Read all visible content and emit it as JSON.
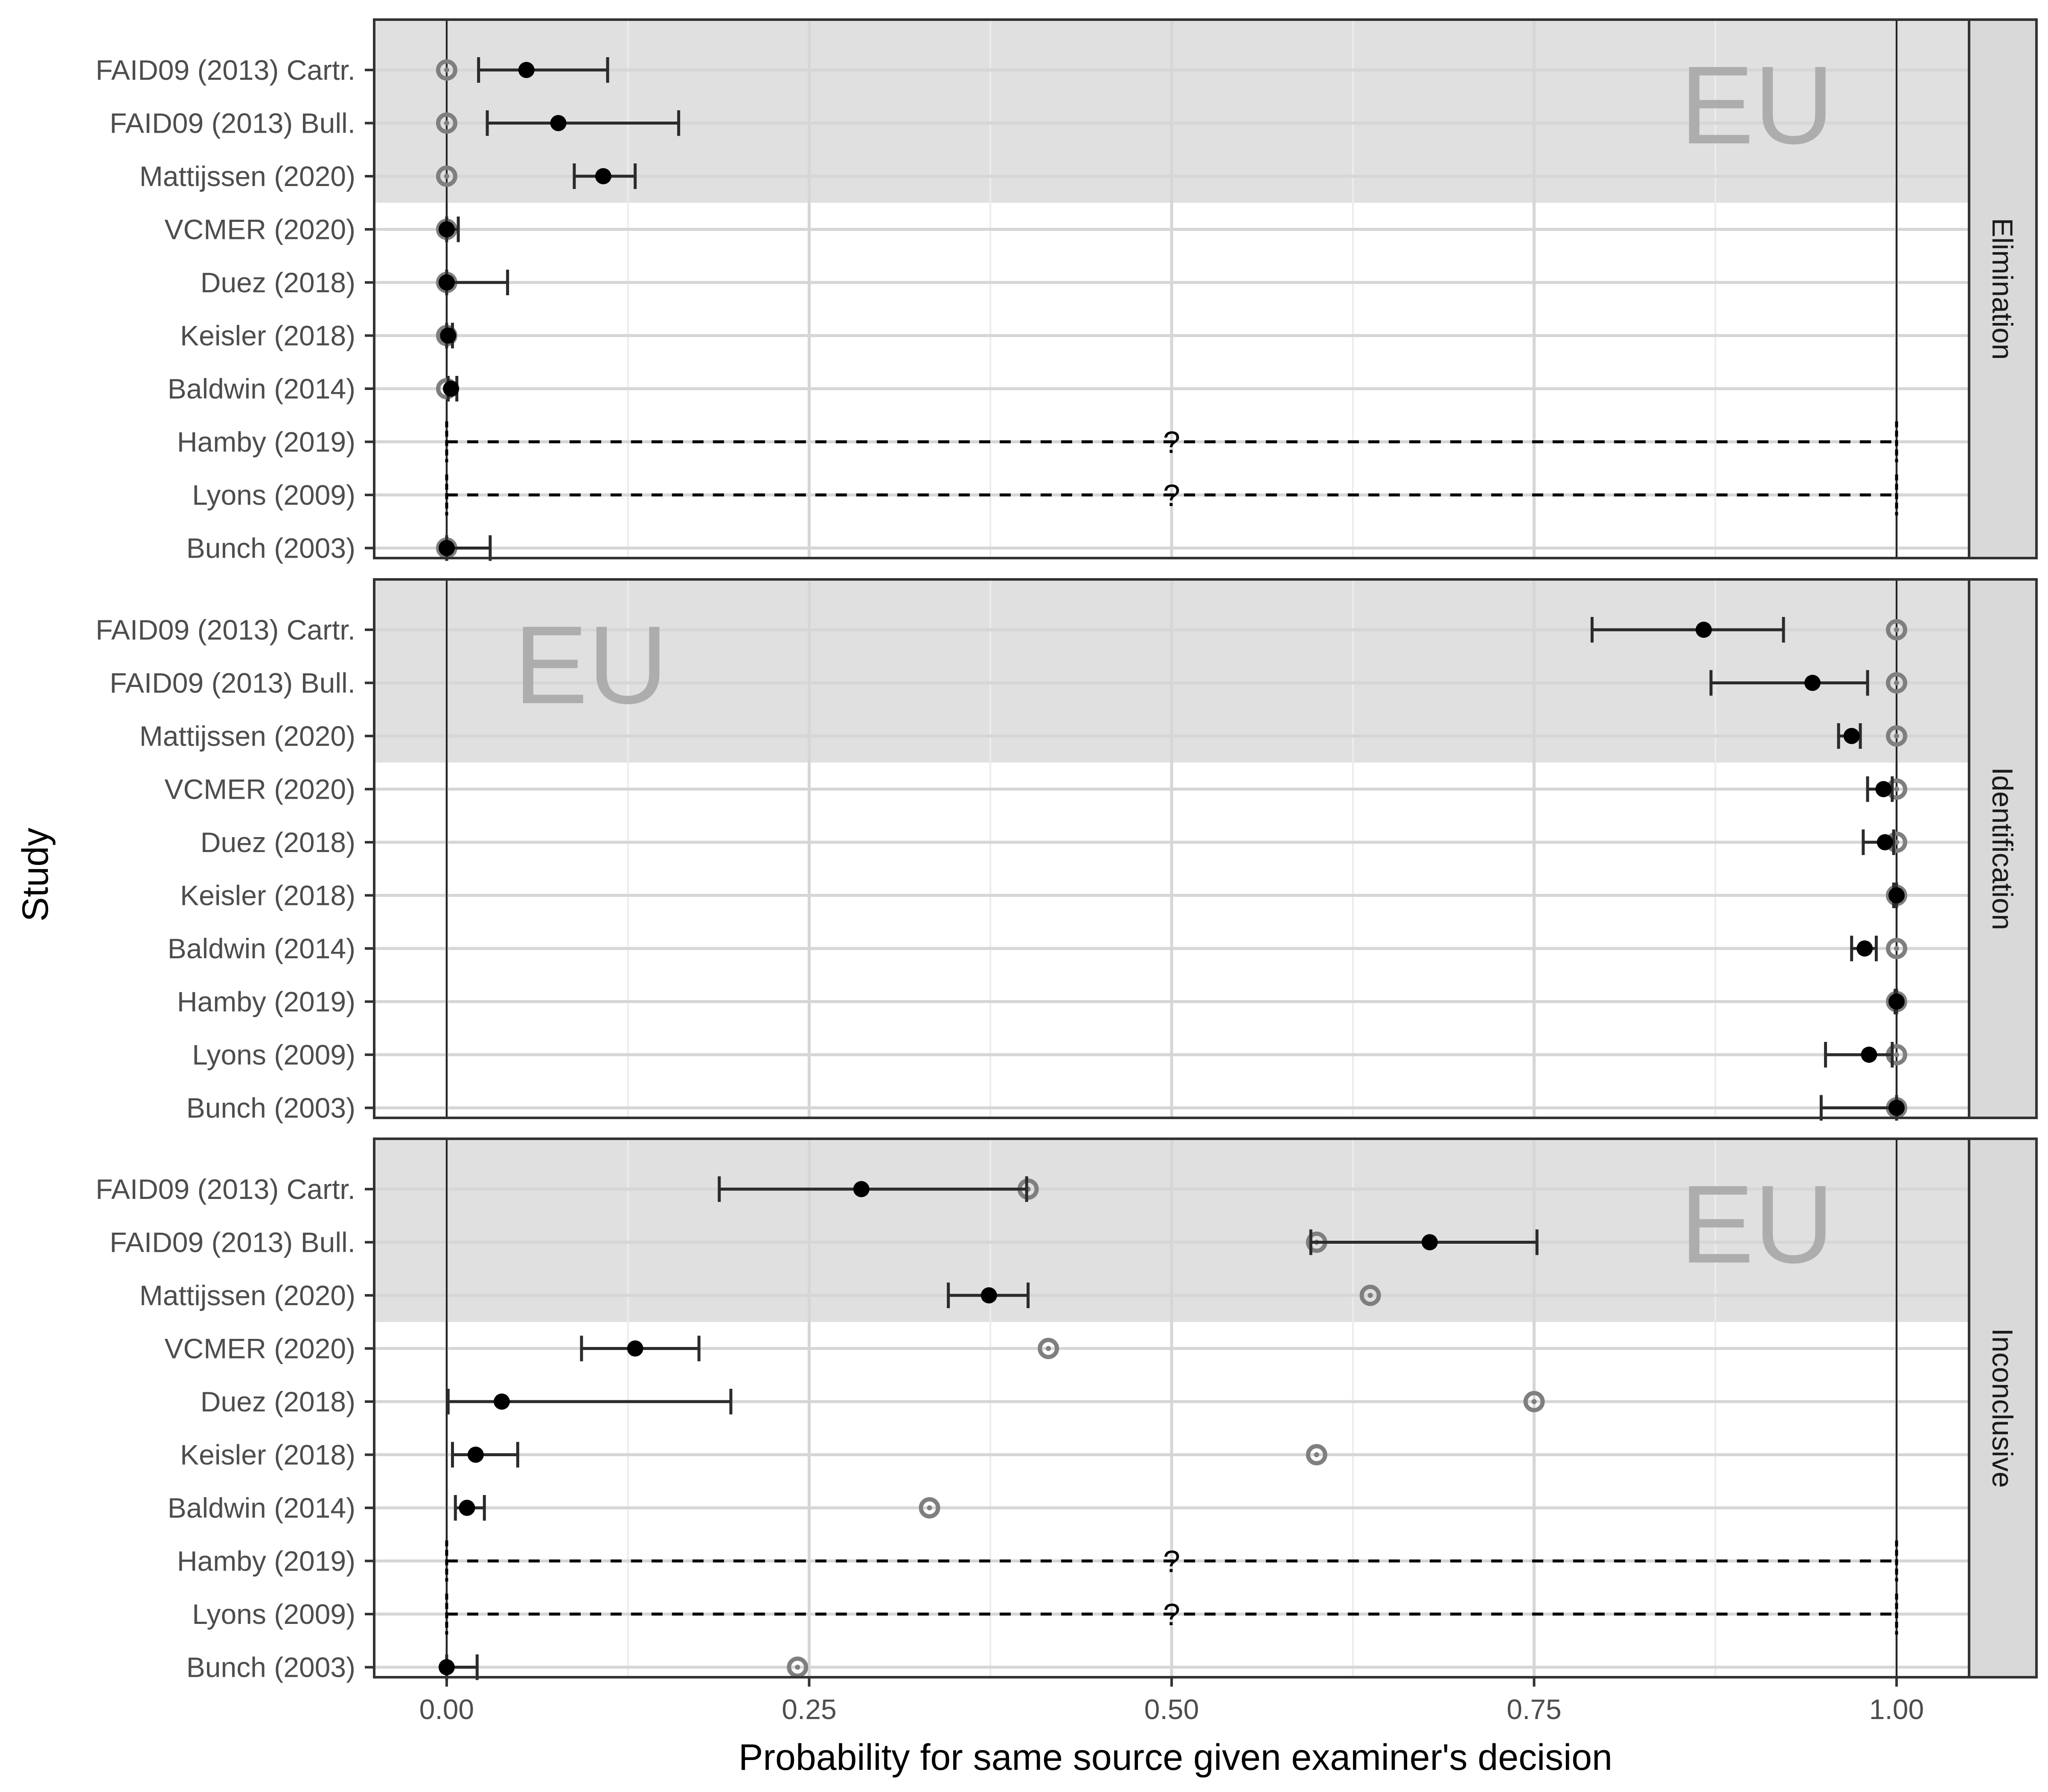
{
  "chart_data": {
    "type": "scatter",
    "xlabel": "Probability for same source given examiner's decision",
    "ylabel": "Study",
    "xlim": [
      -0.05,
      1.05
    ],
    "x_ticks": [
      0.0,
      0.25,
      0.5,
      0.75,
      1.0
    ],
    "x_tick_labels": [
      "0.00",
      "0.25",
      "0.50",
      "0.75",
      "1.00"
    ],
    "grid": true,
    "region_label": "EU",
    "unknown_marker": "?",
    "studies": [
      "FAID09 (2013) Cartr.",
      "FAID09 (2013) Bull.",
      "Mattijssen (2020)",
      "VCMER (2020)",
      "Duez (2018)",
      "Keisler (2018)",
      "Baldwin (2014)",
      "Hamby (2019)",
      "Lyons (2009)",
      "Bunch (2003)"
    ],
    "eu_studies": [
      "FAID09 (2013) Cartr.",
      "FAID09 (2013) Bull.",
      "Mattijssen (2020)"
    ],
    "panels": [
      {
        "label": "Elimination",
        "estimates": [
          {
            "study": "FAID09 (2013) Cartr.",
            "point": 0.055,
            "lower": 0.022,
            "upper": 0.111,
            "reference": 0.0
          },
          {
            "study": "FAID09 (2013) Bull.",
            "point": 0.077,
            "lower": 0.028,
            "upper": 0.16,
            "reference": 0.0
          },
          {
            "study": "Mattijssen (2020)",
            "point": 0.108,
            "lower": 0.088,
            "upper": 0.13,
            "reference": 0.0
          },
          {
            "study": "VCMER (2020)",
            "point": 0.0,
            "lower": 0.0,
            "upper": 0.008,
            "reference": 0.0
          },
          {
            "study": "Duez (2018)",
            "point": 0.0,
            "lower": 0.0,
            "upper": 0.042,
            "reference": 0.0
          },
          {
            "study": "Keisler (2018)",
            "point": 0.001,
            "lower": 0.0,
            "upper": 0.004,
            "reference": 0.0
          },
          {
            "study": "Baldwin (2014)",
            "point": 0.003,
            "lower": 0.001,
            "upper": 0.007,
            "reference": 0.0
          },
          {
            "study": "Hamby (2019)",
            "unknown": true,
            "lower": 0.0,
            "upper": 1.0
          },
          {
            "study": "Lyons (2009)",
            "unknown": true,
            "lower": 0.0,
            "upper": 1.0
          },
          {
            "study": "Bunch (2003)",
            "point": 0.0,
            "lower": 0.0,
            "upper": 0.03,
            "reference": 0.0
          }
        ]
      },
      {
        "label": "Identification",
        "estimates": [
          {
            "study": "FAID09 (2013) Cartr.",
            "point": 0.867,
            "lower": 0.79,
            "upper": 0.922,
            "reference": 1.0
          },
          {
            "study": "FAID09 (2013) Bull.",
            "point": 0.942,
            "lower": 0.872,
            "upper": 0.98,
            "reference": 1.0
          },
          {
            "study": "Mattijssen (2020)",
            "point": 0.969,
            "lower": 0.96,
            "upper": 0.975,
            "reference": 1.0
          },
          {
            "study": "VCMER (2020)",
            "point": 0.991,
            "lower": 0.98,
            "upper": 0.997,
            "reference": 1.0
          },
          {
            "study": "Duez (2018)",
            "point": 0.992,
            "lower": 0.977,
            "upper": 0.998,
            "reference": 1.0
          },
          {
            "study": "Keisler (2018)",
            "point": 1.0,
            "lower": 0.998,
            "upper": 1.0,
            "reference": 1.0
          },
          {
            "study": "Baldwin (2014)",
            "point": 0.978,
            "lower": 0.969,
            "upper": 0.986,
            "reference": 1.0
          },
          {
            "study": "Hamby (2019)",
            "point": 1.0,
            "lower": 0.999,
            "upper": 1.0,
            "reference": 1.0
          },
          {
            "study": "Lyons (2009)",
            "point": 0.981,
            "lower": 0.951,
            "upper": 0.997,
            "reference": 1.0
          },
          {
            "study": "Bunch (2003)",
            "point": 1.0,
            "lower": 0.948,
            "upper": 1.0,
            "reference": 1.0
          }
        ]
      },
      {
        "label": "Inconclusive",
        "estimates": [
          {
            "study": "FAID09 (2013) Cartr.",
            "point": 0.286,
            "lower": 0.188,
            "upper": 0.4,
            "reference": 0.401
          },
          {
            "study": "FAID09 (2013) Bull.",
            "point": 0.678,
            "lower": 0.596,
            "upper": 0.752,
            "reference": 0.6
          },
          {
            "study": "Mattijssen (2020)",
            "point": 0.374,
            "lower": 0.346,
            "upper": 0.401,
            "reference": 0.637
          },
          {
            "study": "VCMER (2020)",
            "point": 0.13,
            "lower": 0.093,
            "upper": 0.174,
            "reference": 0.415
          },
          {
            "study": "Duez (2018)",
            "point": 0.038,
            "lower": 0.001,
            "upper": 0.196,
            "reference": 0.75
          },
          {
            "study": "Keisler (2018)",
            "point": 0.02,
            "lower": 0.004,
            "upper": 0.049,
            "reference": 0.6
          },
          {
            "study": "Baldwin (2014)",
            "point": 0.014,
            "lower": 0.006,
            "upper": 0.026,
            "reference": 0.333
          },
          {
            "study": "Hamby (2019)",
            "unknown": true,
            "lower": 0.0,
            "upper": 1.0
          },
          {
            "study": "Lyons (2009)",
            "unknown": true,
            "lower": 0.0,
            "upper": 1.0
          },
          {
            "study": "Bunch (2003)",
            "point": 0.0,
            "lower": 0.0,
            "upper": 0.021,
            "reference": 0.242
          }
        ]
      }
    ]
  }
}
